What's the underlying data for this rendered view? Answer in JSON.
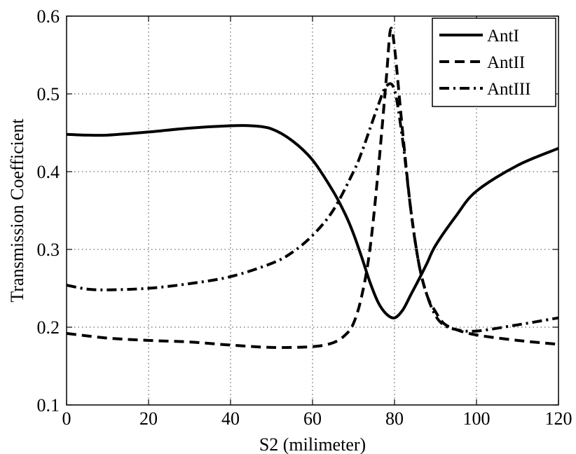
{
  "chart_data": {
    "type": "line",
    "title": "",
    "xlabel": "S2 (milimeter)",
    "ylabel": "Transmission Coefficient",
    "xlim": [
      0,
      120
    ],
    "ylim": [
      0.1,
      0.6
    ],
    "xticks": [
      0,
      20,
      40,
      60,
      80,
      100,
      120
    ],
    "yticks": [
      0.1,
      0.2,
      0.3,
      0.4,
      0.5,
      0.6
    ],
    "xtick_labels": [
      "0",
      "20",
      "40",
      "60",
      "80",
      "100",
      "120"
    ],
    "ytick_labels": [
      "0.1",
      "0.2",
      "0.3",
      "0.4",
      "0.5",
      "0.6"
    ],
    "grid": true,
    "legend_position": "top-right",
    "series": [
      {
        "name": "AntI",
        "style": "solid",
        "color": "#000000",
        "x": [
          0,
          5,
          10,
          20,
          30,
          40,
          45,
          50,
          55,
          60,
          65,
          68,
          70,
          72,
          74,
          76,
          78,
          80,
          82,
          84,
          86,
          88,
          90,
          95,
          100,
          110,
          120
        ],
        "y": [
          0.448,
          0.447,
          0.447,
          0.451,
          0.456,
          0.459,
          0.459,
          0.455,
          0.44,
          0.415,
          0.375,
          0.345,
          0.32,
          0.29,
          0.258,
          0.232,
          0.217,
          0.212,
          0.222,
          0.242,
          0.262,
          0.283,
          0.305,
          0.343,
          0.375,
          0.408,
          0.43
        ]
      },
      {
        "name": "AntII",
        "style": "dashed",
        "color": "#000000",
        "x": [
          0,
          10,
          20,
          30,
          40,
          50,
          60,
          65,
          68,
          70,
          72,
          74,
          76,
          78,
          79,
          80,
          82,
          84,
          86,
          88,
          90,
          92,
          95,
          100,
          110,
          120
        ],
        "y": [
          0.192,
          0.186,
          0.183,
          0.181,
          0.177,
          0.174,
          0.175,
          0.18,
          0.19,
          0.205,
          0.24,
          0.3,
          0.4,
          0.52,
          0.582,
          0.56,
          0.45,
          0.35,
          0.28,
          0.24,
          0.22,
          0.205,
          0.197,
          0.19,
          0.183,
          0.178
        ]
      },
      {
        "name": "AntIII",
        "style": "dash-dot",
        "color": "#000000",
        "x": [
          0,
          5,
          10,
          20,
          30,
          40,
          50,
          55,
          60,
          65,
          70,
          72,
          74,
          76,
          78,
          80,
          82,
          84,
          86,
          88,
          90,
          92,
          95,
          100,
          110,
          120
        ],
        "y": [
          0.254,
          0.249,
          0.248,
          0.25,
          0.256,
          0.265,
          0.282,
          0.296,
          0.318,
          0.35,
          0.4,
          0.425,
          0.455,
          0.485,
          0.51,
          0.505,
          0.44,
          0.35,
          0.28,
          0.24,
          0.215,
          0.203,
          0.197,
          0.195,
          0.203,
          0.212
        ]
      }
    ]
  }
}
